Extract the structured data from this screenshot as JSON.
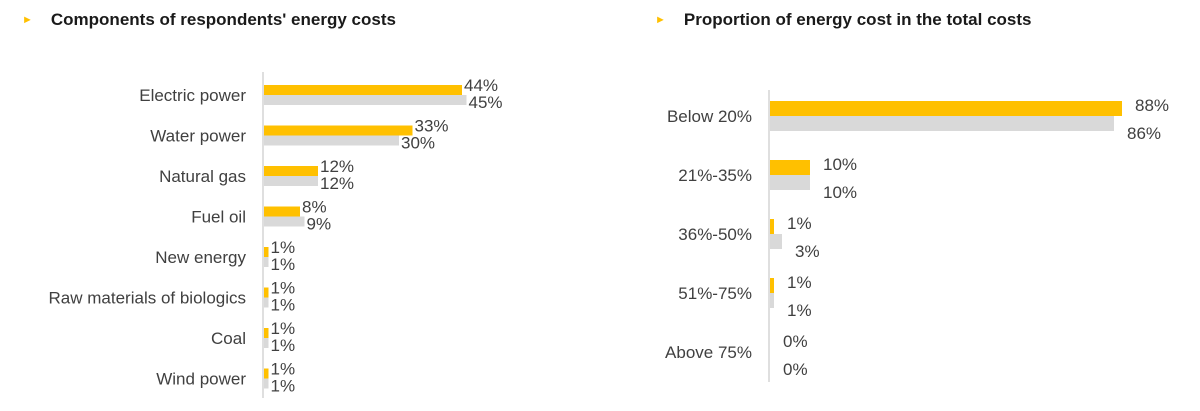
{
  "colors": {
    "series_1": "#ffc000",
    "series_2": "#d9d9d9",
    "axis": "#bfbfbf",
    "marker": "#ffc000"
  },
  "chart_data": [
    {
      "type": "bar",
      "orientation": "horizontal",
      "title": "Components of respondents' energy costs",
      "categories": [
        "Electric power",
        "Water power",
        "Natural gas",
        "Fuel oil",
        "New energy",
        "Raw materials of biologics",
        "Coal",
        "Wind power"
      ],
      "series": [
        {
          "values": [
            44,
            33,
            12,
            8,
            1,
            1,
            1,
            1
          ],
          "labels": [
            "44%",
            "33%",
            "12%",
            "8%",
            "1%",
            "1%",
            "1%",
            "1%"
          ]
        },
        {
          "values": [
            45,
            30,
            12,
            9,
            1,
            1,
            1,
            1
          ],
          "labels": [
            "45%",
            "30%",
            "12%",
            "9%",
            "1%",
            "1%",
            "1%",
            "1%"
          ]
        }
      ],
      "unit": "%",
      "xlim": [
        0,
        100
      ],
      "grid": false
    },
    {
      "type": "bar",
      "orientation": "horizontal",
      "title": "Proportion of energy cost in the total costs",
      "categories": [
        "Below 20%",
        "21%-35%",
        "36%-50%",
        "51%-75%",
        "Above 75%"
      ],
      "series": [
        {
          "values": [
            88,
            10,
            1,
            1,
            0
          ],
          "labels": [
            "88%",
            "10%",
            "1%",
            "1%",
            "0%"
          ]
        },
        {
          "values": [
            86,
            10,
            3,
            1,
            0
          ],
          "labels": [
            "86%",
            "10%",
            "3%",
            "1%",
            "0%"
          ]
        }
      ],
      "unit": "%",
      "xlim": [
        0,
        100
      ],
      "grid": false
    }
  ]
}
